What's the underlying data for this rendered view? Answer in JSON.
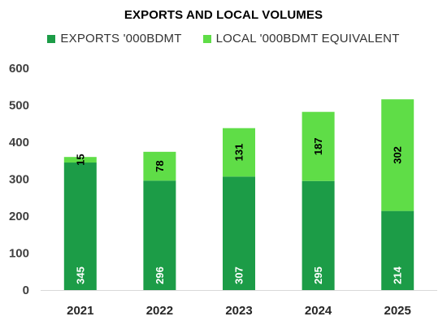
{
  "chart_data": {
    "type": "bar",
    "stacked": true,
    "title": "EXPORTS AND LOCAL VOLUMES",
    "categories": [
      "2021",
      "2022",
      "2023",
      "2024",
      "2025"
    ],
    "series": [
      {
        "name": "EXPORTS '000BDMT",
        "values": [
          345,
          296,
          307,
          295,
          214
        ],
        "color": "#1c9c47"
      },
      {
        "name": "LOCAL '000BDMT EQUIVALENT",
        "values": [
          15,
          78,
          131,
          187,
          302
        ],
        "color": "#5fdd47"
      }
    ],
    "ylim": [
      0,
      600
    ],
    "yticks": [
      "0",
      "100",
      "200",
      "300",
      "400",
      "500",
      "600"
    ],
    "grid": false,
    "legend_position": "top"
  }
}
